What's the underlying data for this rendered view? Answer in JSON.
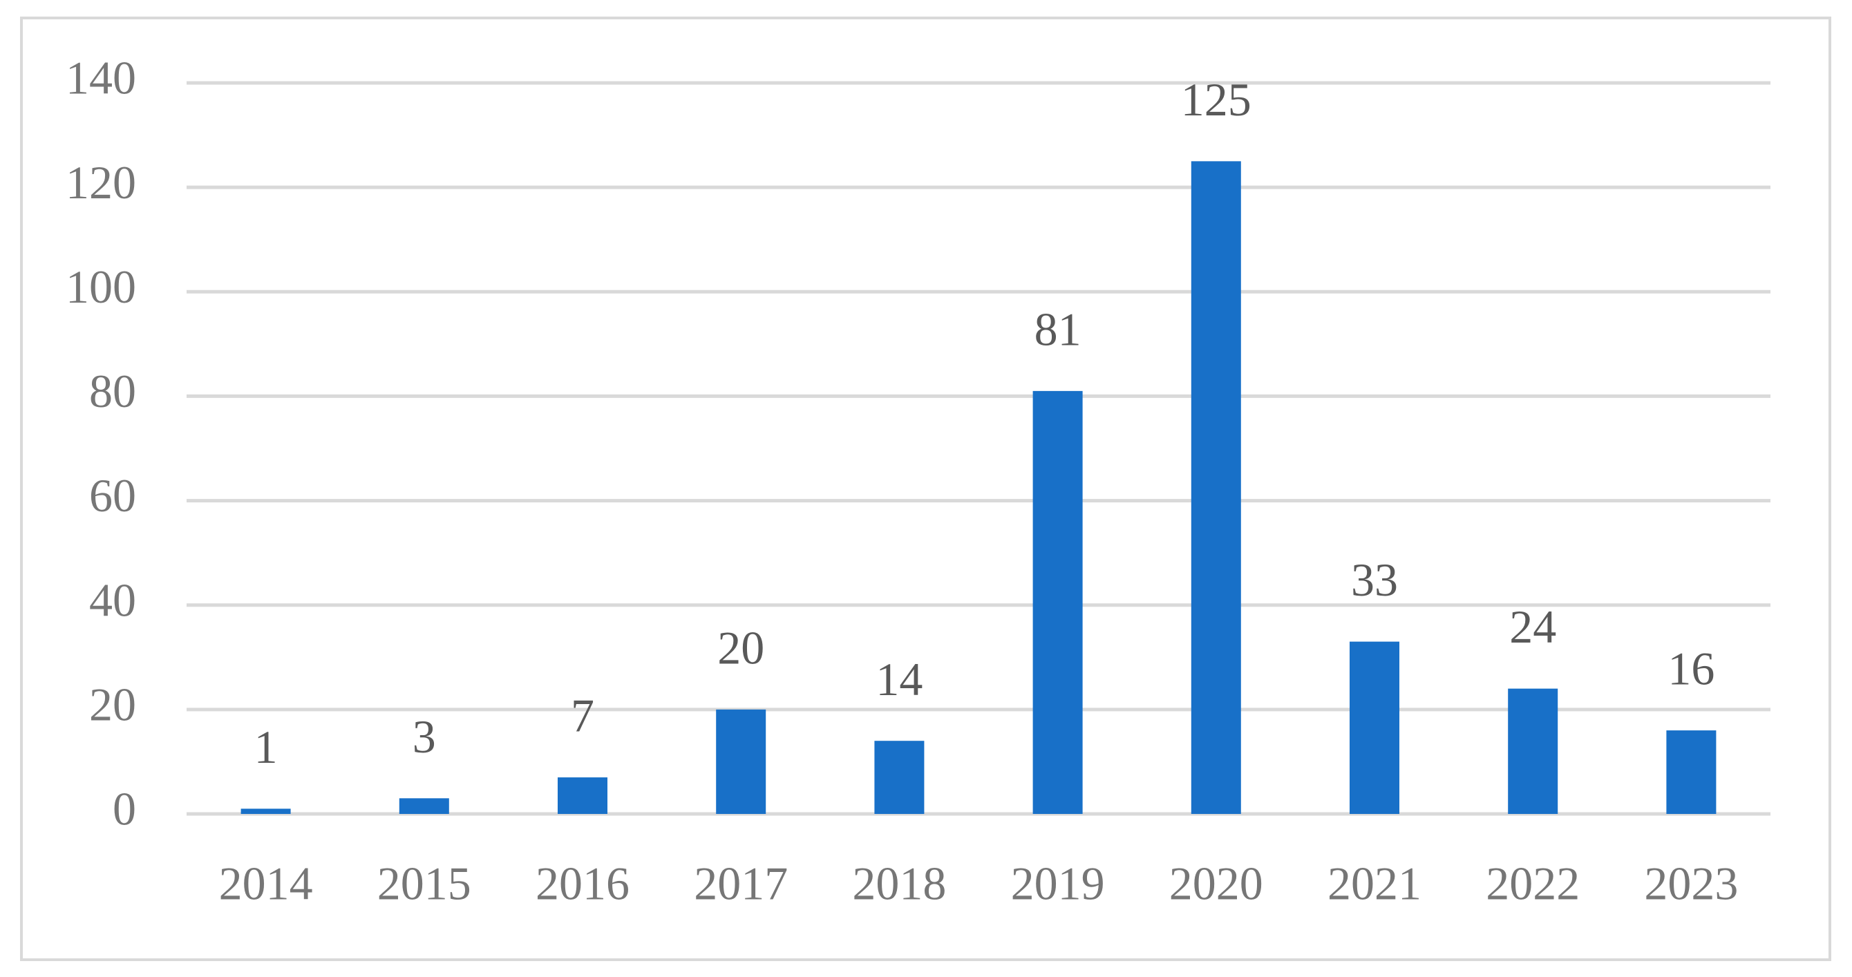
{
  "chart_data": {
    "type": "bar",
    "categories": [
      "2014",
      "2015",
      "2016",
      "2017",
      "2018",
      "2019",
      "2020",
      "2021",
      "2022",
      "2023"
    ],
    "values": [
      1,
      3,
      7,
      20,
      14,
      81,
      125,
      33,
      24,
      16
    ],
    "color": "#1870c8",
    "ylim": [
      0,
      140
    ],
    "yticks": [
      0,
      20,
      40,
      60,
      80,
      100,
      120,
      140
    ],
    "grid": true,
    "data_labels": true
  }
}
